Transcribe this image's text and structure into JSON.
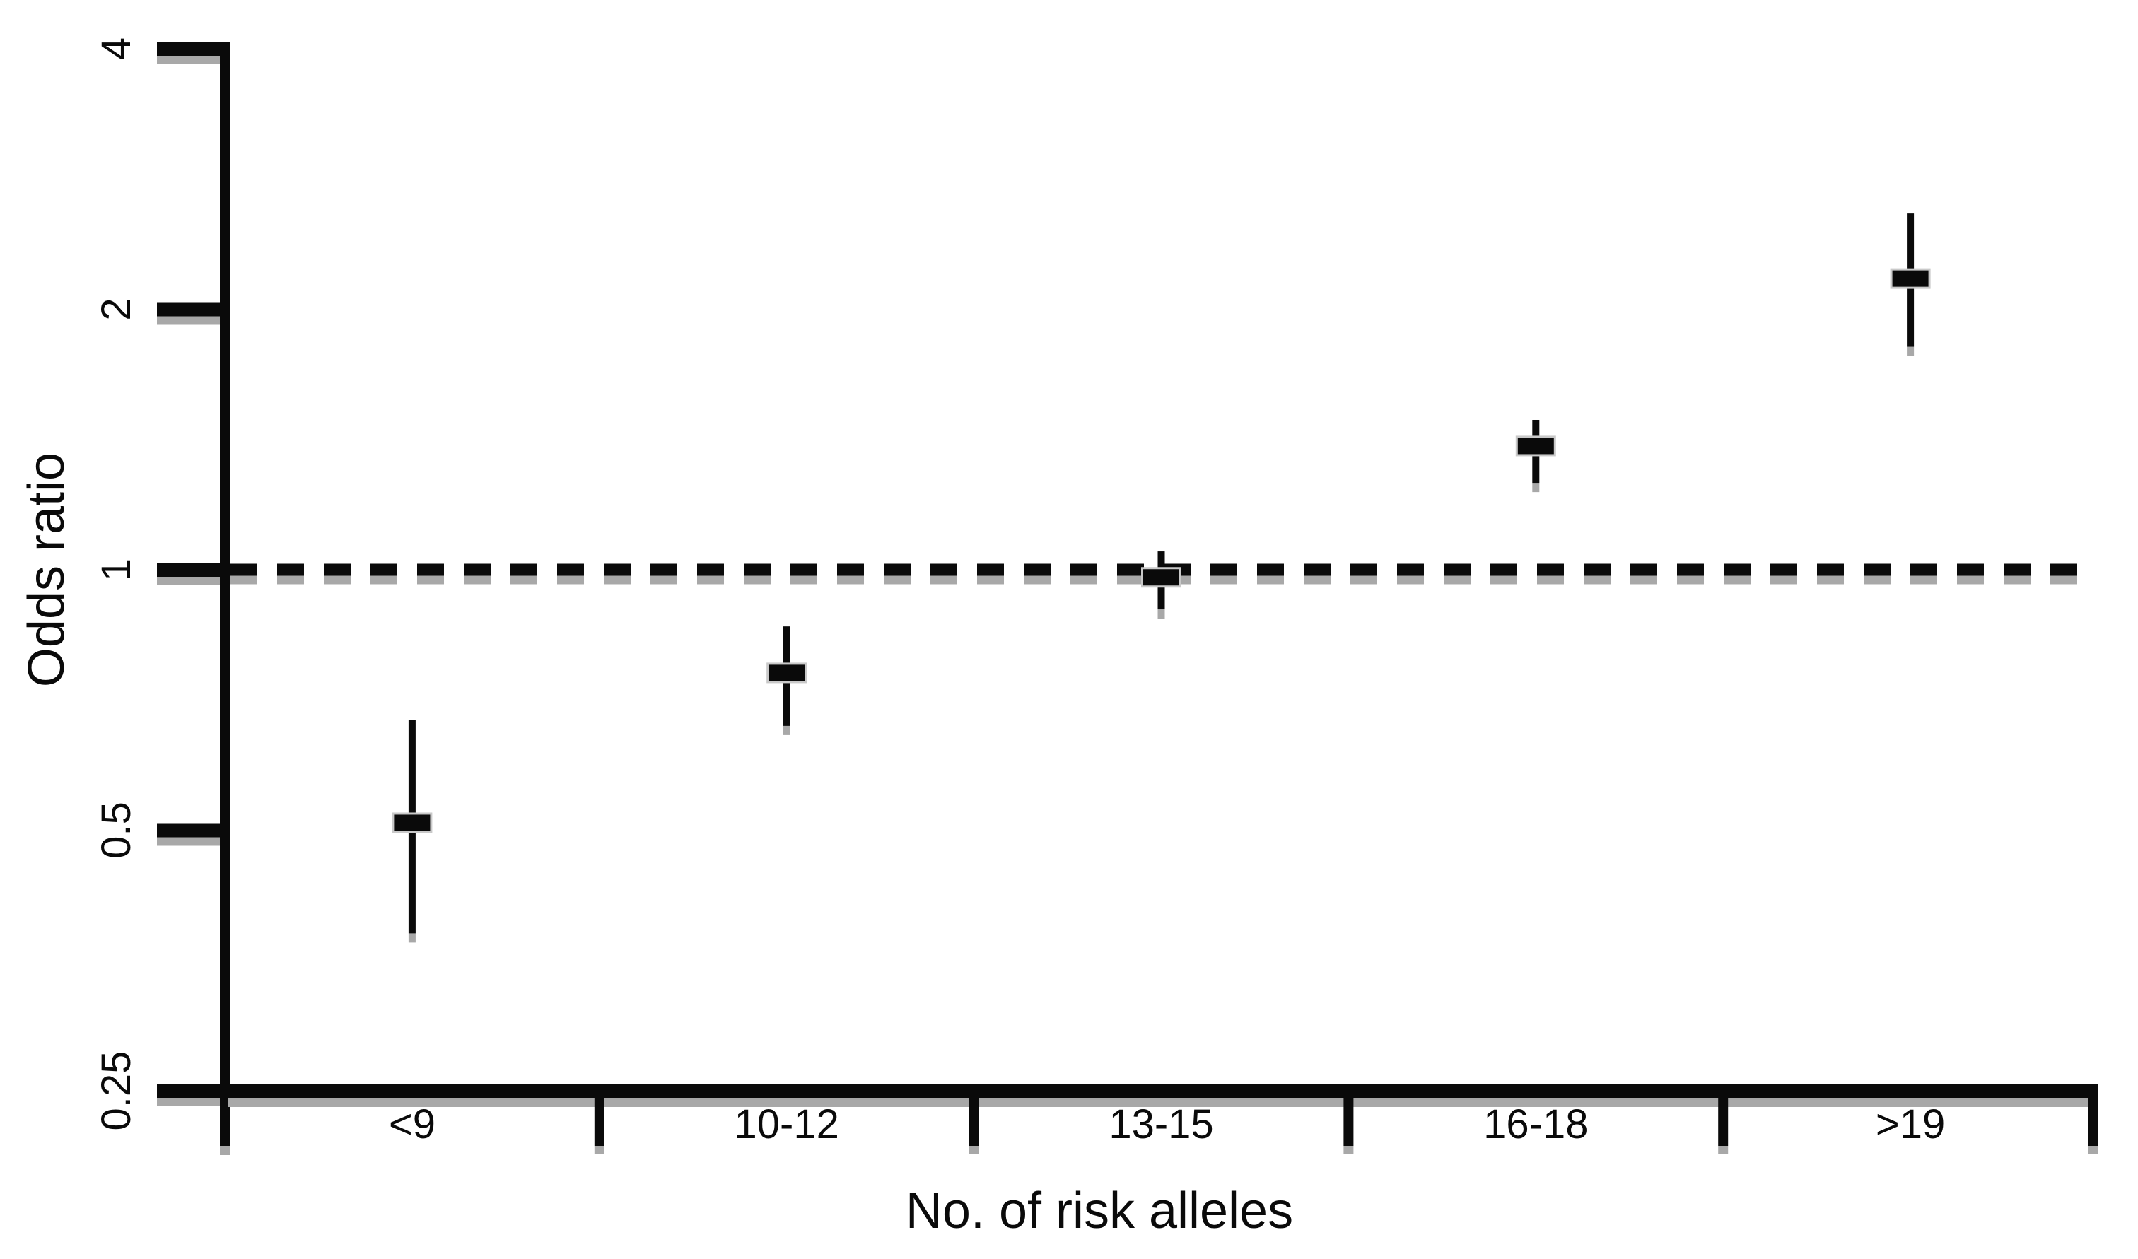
{
  "figure": {
    "background_color": "#ffffff",
    "ink_color": "#0a0a0a",
    "shadow_color": "#a8a8a8",
    "marker_outline_color": "#c9c9c9"
  },
  "chart_data": {
    "type": "scatter",
    "subtype": "forest-plot-error-bars",
    "title": "",
    "xlabel": "No. of risk alleles",
    "ylabel": "Odds ratio",
    "categories": [
      "<9",
      "10-12",
      "13-15",
      "16-18",
      ">19"
    ],
    "series": [
      {
        "name": "odds-ratio",
        "marker": "filled-square",
        "points": [
          {
            "category": "<9",
            "or": 0.51,
            "ci_low": 0.38,
            "ci_high": 0.67
          },
          {
            "category": "10-12",
            "or": 0.76,
            "ci_low": 0.66,
            "ci_high": 0.86
          },
          {
            "category": "13-15",
            "or": 0.98,
            "ci_low": 0.9,
            "ci_high": 1.05
          },
          {
            "category": "16-18",
            "or": 1.39,
            "ci_low": 1.26,
            "ci_high": 1.49
          },
          {
            "category": ">19",
            "or": 2.17,
            "ci_low": 1.81,
            "ci_high": 2.58
          }
        ]
      }
    ],
    "y_scale": "log2",
    "y_ticks": [
      "4",
      "2",
      "1",
      "0.5",
      "0.25"
    ],
    "y_tick_values": [
      4,
      2,
      1,
      0.5,
      0.25
    ],
    "ylim": [
      0.25,
      4
    ],
    "reference_line": {
      "value": 1,
      "style": "dashed"
    },
    "grid": false,
    "legend": false,
    "error_bars": "confidence-interval"
  }
}
